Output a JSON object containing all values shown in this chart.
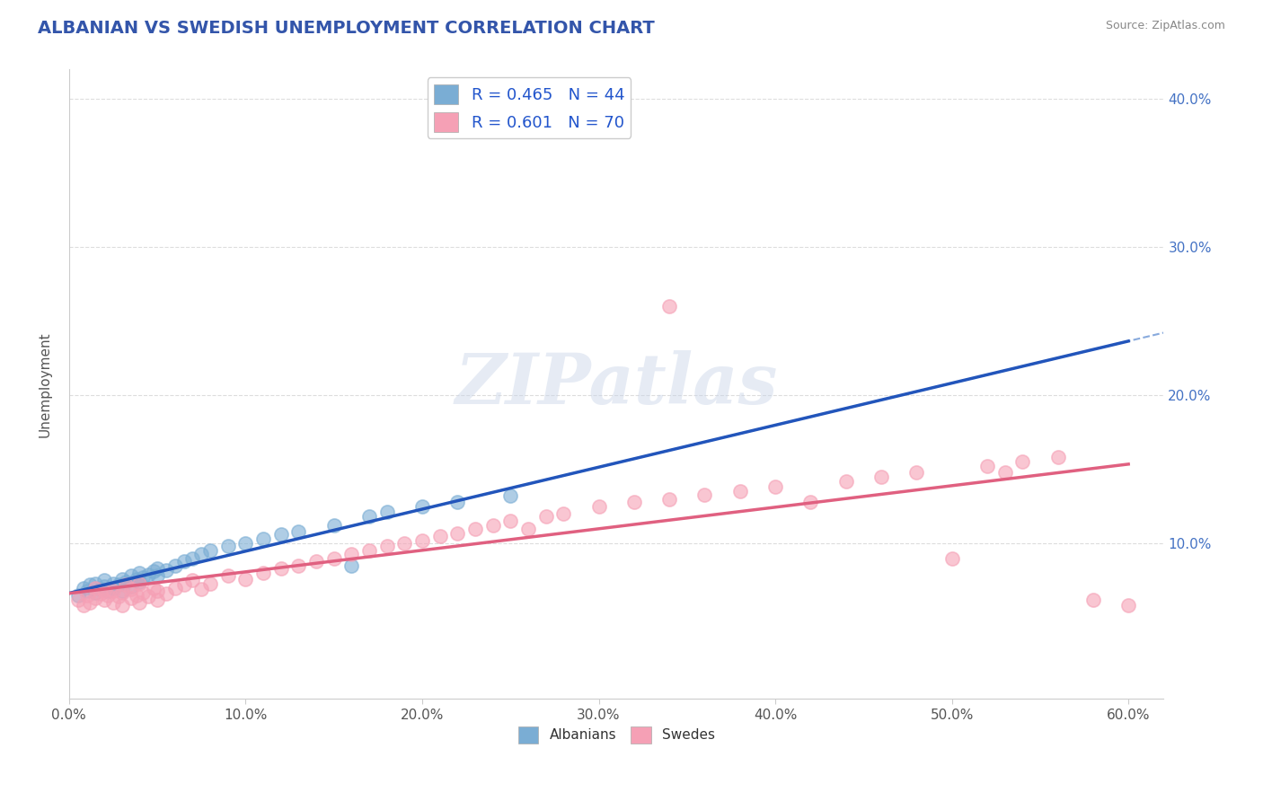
{
  "title": "ALBANIAN VS SWEDISH UNEMPLOYMENT CORRELATION CHART",
  "source": "Source: ZipAtlas.com",
  "ylabel": "Unemployment",
  "xlim": [
    0.0,
    0.62
  ],
  "ylim": [
    -0.005,
    0.42
  ],
  "xtick_labels": [
    "0.0%",
    "10.0%",
    "20.0%",
    "30.0%",
    "40.0%",
    "50.0%",
    "60.0%"
  ],
  "xtick_vals": [
    0.0,
    0.1,
    0.2,
    0.3,
    0.4,
    0.5,
    0.6
  ],
  "ytick_labels": [
    "10.0%",
    "20.0%",
    "30.0%",
    "40.0%"
  ],
  "ytick_vals": [
    0.1,
    0.2,
    0.3,
    0.4
  ],
  "albanian_color": "#7aadd4",
  "swedish_color": "#f5a0b5",
  "albanian_line_color": "#2255bb",
  "swedish_line_color": "#e06080",
  "dashed_line_color": "#88aadd",
  "R_albanian": 0.465,
  "N_albanian": 44,
  "R_swedish": 0.601,
  "N_swedish": 70,
  "albanian_scatter": [
    [
      0.005,
      0.065
    ],
    [
      0.008,
      0.07
    ],
    [
      0.01,
      0.068
    ],
    [
      0.012,
      0.072
    ],
    [
      0.015,
      0.067
    ],
    [
      0.015,
      0.073
    ],
    [
      0.018,
      0.069
    ],
    [
      0.02,
      0.071
    ],
    [
      0.02,
      0.075
    ],
    [
      0.022,
      0.068
    ],
    [
      0.025,
      0.07
    ],
    [
      0.025,
      0.073
    ],
    [
      0.028,
      0.072
    ],
    [
      0.03,
      0.068
    ],
    [
      0.03,
      0.076
    ],
    [
      0.032,
      0.074
    ],
    [
      0.035,
      0.071
    ],
    [
      0.035,
      0.078
    ],
    [
      0.038,
      0.076
    ],
    [
      0.04,
      0.074
    ],
    [
      0.04,
      0.08
    ],
    [
      0.042,
      0.077
    ],
    [
      0.045,
      0.079
    ],
    [
      0.048,
      0.081
    ],
    [
      0.05,
      0.078
    ],
    [
      0.05,
      0.083
    ],
    [
      0.055,
      0.082
    ],
    [
      0.06,
      0.085
    ],
    [
      0.065,
      0.088
    ],
    [
      0.07,
      0.09
    ],
    [
      0.075,
      0.093
    ],
    [
      0.08,
      0.095
    ],
    [
      0.09,
      0.098
    ],
    [
      0.1,
      0.1
    ],
    [
      0.11,
      0.103
    ],
    [
      0.12,
      0.106
    ],
    [
      0.13,
      0.108
    ],
    [
      0.15,
      0.112
    ],
    [
      0.16,
      0.085
    ],
    [
      0.17,
      0.118
    ],
    [
      0.18,
      0.121
    ],
    [
      0.2,
      0.125
    ],
    [
      0.22,
      0.128
    ],
    [
      0.25,
      0.132
    ]
  ],
  "swedish_scatter": [
    [
      0.005,
      0.062
    ],
    [
      0.008,
      0.058
    ],
    [
      0.01,
      0.065
    ],
    [
      0.012,
      0.06
    ],
    [
      0.015,
      0.063
    ],
    [
      0.015,
      0.07
    ],
    [
      0.018,
      0.066
    ],
    [
      0.02,
      0.068
    ],
    [
      0.02,
      0.062
    ],
    [
      0.022,
      0.065
    ],
    [
      0.025,
      0.06
    ],
    [
      0.025,
      0.068
    ],
    [
      0.028,
      0.064
    ],
    [
      0.03,
      0.067
    ],
    [
      0.03,
      0.058
    ],
    [
      0.032,
      0.072
    ],
    [
      0.035,
      0.063
    ],
    [
      0.035,
      0.069
    ],
    [
      0.038,
      0.065
    ],
    [
      0.04,
      0.06
    ],
    [
      0.04,
      0.073
    ],
    [
      0.042,
      0.067
    ],
    [
      0.045,
      0.064
    ],
    [
      0.048,
      0.07
    ],
    [
      0.05,
      0.062
    ],
    [
      0.05,
      0.068
    ],
    [
      0.055,
      0.066
    ],
    [
      0.06,
      0.07
    ],
    [
      0.065,
      0.072
    ],
    [
      0.07,
      0.075
    ],
    [
      0.075,
      0.069
    ],
    [
      0.08,
      0.073
    ],
    [
      0.09,
      0.078
    ],
    [
      0.1,
      0.076
    ],
    [
      0.11,
      0.08
    ],
    [
      0.12,
      0.083
    ],
    [
      0.13,
      0.085
    ],
    [
      0.14,
      0.088
    ],
    [
      0.15,
      0.09
    ],
    [
      0.16,
      0.093
    ],
    [
      0.17,
      0.095
    ],
    [
      0.18,
      0.098
    ],
    [
      0.19,
      0.1
    ],
    [
      0.2,
      0.102
    ],
    [
      0.21,
      0.105
    ],
    [
      0.22,
      0.107
    ],
    [
      0.23,
      0.11
    ],
    [
      0.24,
      0.112
    ],
    [
      0.25,
      0.115
    ],
    [
      0.26,
      0.11
    ],
    [
      0.27,
      0.118
    ],
    [
      0.28,
      0.12
    ],
    [
      0.3,
      0.125
    ],
    [
      0.32,
      0.128
    ],
    [
      0.34,
      0.13
    ],
    [
      0.36,
      0.133
    ],
    [
      0.38,
      0.135
    ],
    [
      0.4,
      0.138
    ],
    [
      0.42,
      0.128
    ],
    [
      0.44,
      0.142
    ],
    [
      0.46,
      0.145
    ],
    [
      0.48,
      0.148
    ],
    [
      0.5,
      0.09
    ],
    [
      0.52,
      0.152
    ],
    [
      0.54,
      0.155
    ],
    [
      0.56,
      0.158
    ],
    [
      0.58,
      0.062
    ],
    [
      0.6,
      0.058
    ],
    [
      0.34,
      0.26
    ],
    [
      0.53,
      0.148
    ]
  ],
  "background_color": "#ffffff",
  "grid_color": "#dddddd",
  "title_color": "#3355aa",
  "legend_label_color": "#2255cc",
  "tick_color": "#4472c4"
}
